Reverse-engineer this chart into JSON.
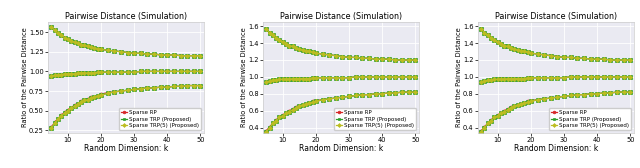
{
  "title": "Pairwise Distance (Simulation)",
  "xlabel": "Random Dimension: k",
  "ylabel": "Ratio of the Pairwise Distance",
  "k_values": [
    5,
    6,
    7,
    8,
    9,
    10,
    11,
    12,
    13,
    14,
    15,
    16,
    17,
    18,
    19,
    20,
    22,
    24,
    26,
    28,
    30,
    32,
    34,
    36,
    38,
    40,
    42,
    44,
    46,
    48,
    50
  ],
  "subplots": [
    {
      "ylim": [
        0.22,
        1.63
      ],
      "yticks": [
        0.25,
        0.5,
        0.75,
        1.0,
        1.25,
        1.5
      ],
      "sparse_rp_upper": [
        1.57,
        1.52,
        1.49,
        1.46,
        1.43,
        1.41,
        1.39,
        1.37,
        1.36,
        1.34,
        1.33,
        1.32,
        1.31,
        1.3,
        1.29,
        1.28,
        1.27,
        1.26,
        1.25,
        1.24,
        1.23,
        1.23,
        1.22,
        1.22,
        1.21,
        1.21,
        1.21,
        1.2,
        1.2,
        1.2,
        1.2
      ],
      "sparse_rp_mid": [
        0.94,
        0.95,
        0.96,
        0.96,
        0.97,
        0.97,
        0.97,
        0.97,
        0.98,
        0.98,
        0.98,
        0.98,
        0.98,
        0.98,
        0.99,
        0.99,
        0.99,
        0.99,
        0.99,
        0.99,
        0.99,
        1.0,
        1.0,
        1.0,
        1.0,
        1.0,
        1.0,
        1.0,
        1.0,
        1.0,
        1.0
      ],
      "sparse_rp_lower": [
        0.29,
        0.35,
        0.4,
        0.44,
        0.48,
        0.51,
        0.54,
        0.57,
        0.59,
        0.62,
        0.63,
        0.65,
        0.67,
        0.68,
        0.69,
        0.71,
        0.73,
        0.74,
        0.75,
        0.76,
        0.77,
        0.78,
        0.79,
        0.79,
        0.8,
        0.8,
        0.81,
        0.81,
        0.82,
        0.82,
        0.82
      ],
      "trp_upper": [
        1.57,
        1.52,
        1.49,
        1.46,
        1.43,
        1.41,
        1.39,
        1.37,
        1.36,
        1.34,
        1.33,
        1.32,
        1.31,
        1.3,
        1.29,
        1.28,
        1.27,
        1.26,
        1.25,
        1.24,
        1.23,
        1.23,
        1.22,
        1.22,
        1.21,
        1.21,
        1.21,
        1.2,
        1.2,
        1.2,
        1.2
      ],
      "trp_mid": [
        0.94,
        0.95,
        0.96,
        0.96,
        0.97,
        0.97,
        0.97,
        0.97,
        0.98,
        0.98,
        0.98,
        0.98,
        0.98,
        0.98,
        0.99,
        0.99,
        0.99,
        0.99,
        0.99,
        0.99,
        0.99,
        1.0,
        1.0,
        1.0,
        1.0,
        1.0,
        1.0,
        1.0,
        1.0,
        1.0,
        1.0
      ],
      "trp_lower": [
        0.28,
        0.34,
        0.39,
        0.43,
        0.47,
        0.5,
        0.53,
        0.56,
        0.58,
        0.61,
        0.63,
        0.64,
        0.66,
        0.68,
        0.69,
        0.7,
        0.72,
        0.74,
        0.75,
        0.76,
        0.77,
        0.78,
        0.79,
        0.79,
        0.8,
        0.8,
        0.81,
        0.81,
        0.82,
        0.82,
        0.82
      ],
      "trp5_upper": [
        1.57,
        1.52,
        1.49,
        1.46,
        1.43,
        1.41,
        1.39,
        1.37,
        1.36,
        1.34,
        1.33,
        1.32,
        1.31,
        1.3,
        1.29,
        1.28,
        1.27,
        1.26,
        1.25,
        1.24,
        1.23,
        1.23,
        1.22,
        1.22,
        1.21,
        1.21,
        1.21,
        1.2,
        1.2,
        1.2,
        1.2
      ],
      "trp5_mid": [
        0.94,
        0.95,
        0.96,
        0.96,
        0.97,
        0.97,
        0.97,
        0.97,
        0.98,
        0.98,
        0.98,
        0.98,
        0.98,
        0.98,
        0.99,
        0.99,
        0.99,
        0.99,
        0.99,
        0.99,
        0.99,
        1.0,
        1.0,
        1.0,
        1.0,
        1.0,
        1.0,
        1.0,
        1.0,
        1.0,
        1.0
      ],
      "trp5_lower": [
        0.28,
        0.34,
        0.39,
        0.43,
        0.47,
        0.5,
        0.53,
        0.56,
        0.58,
        0.61,
        0.63,
        0.64,
        0.66,
        0.68,
        0.69,
        0.7,
        0.72,
        0.74,
        0.75,
        0.76,
        0.77,
        0.78,
        0.79,
        0.79,
        0.8,
        0.8,
        0.81,
        0.81,
        0.82,
        0.82,
        0.82
      ]
    },
    {
      "ylim": [
        0.34,
        1.65
      ],
      "yticks": [
        0.4,
        0.6,
        0.8,
        1.0,
        1.2,
        1.4,
        1.6
      ],
      "sparse_rp_upper": [
        1.57,
        1.52,
        1.49,
        1.46,
        1.43,
        1.41,
        1.39,
        1.37,
        1.36,
        1.34,
        1.33,
        1.32,
        1.31,
        1.3,
        1.29,
        1.28,
        1.27,
        1.26,
        1.25,
        1.24,
        1.23,
        1.23,
        1.22,
        1.22,
        1.21,
        1.21,
        1.21,
        1.2,
        1.2,
        1.2,
        1.2
      ],
      "sparse_rp_mid": [
        0.94,
        0.95,
        0.96,
        0.96,
        0.97,
        0.97,
        0.97,
        0.97,
        0.98,
        0.98,
        0.98,
        0.98,
        0.98,
        0.98,
        0.99,
        0.99,
        0.99,
        0.99,
        0.99,
        0.99,
        0.99,
        1.0,
        1.0,
        1.0,
        1.0,
        1.0,
        1.0,
        1.0,
        1.0,
        1.0,
        1.0
      ],
      "sparse_rp_lower": [
        0.36,
        0.41,
        0.45,
        0.49,
        0.52,
        0.55,
        0.57,
        0.6,
        0.62,
        0.64,
        0.65,
        0.67,
        0.68,
        0.69,
        0.71,
        0.72,
        0.73,
        0.74,
        0.75,
        0.76,
        0.77,
        0.78,
        0.79,
        0.79,
        0.8,
        0.8,
        0.81,
        0.81,
        0.82,
        0.82,
        0.82
      ],
      "trp_upper": [
        1.57,
        1.52,
        1.49,
        1.46,
        1.43,
        1.41,
        1.39,
        1.37,
        1.36,
        1.34,
        1.33,
        1.32,
        1.31,
        1.3,
        1.29,
        1.28,
        1.27,
        1.26,
        1.25,
        1.24,
        1.23,
        1.23,
        1.22,
        1.22,
        1.21,
        1.21,
        1.21,
        1.2,
        1.2,
        1.2,
        1.2
      ],
      "trp_mid": [
        0.94,
        0.95,
        0.96,
        0.96,
        0.97,
        0.97,
        0.97,
        0.97,
        0.98,
        0.98,
        0.98,
        0.98,
        0.98,
        0.98,
        0.99,
        0.99,
        0.99,
        0.99,
        0.99,
        0.99,
        0.99,
        1.0,
        1.0,
        1.0,
        1.0,
        1.0,
        1.0,
        1.0,
        1.0,
        1.0,
        1.0
      ],
      "trp_lower": [
        0.35,
        0.4,
        0.45,
        0.48,
        0.52,
        0.54,
        0.57,
        0.59,
        0.61,
        0.63,
        0.65,
        0.67,
        0.68,
        0.69,
        0.7,
        0.71,
        0.73,
        0.74,
        0.75,
        0.76,
        0.77,
        0.78,
        0.79,
        0.79,
        0.8,
        0.8,
        0.81,
        0.81,
        0.82,
        0.82,
        0.82
      ],
      "trp5_upper": [
        1.57,
        1.52,
        1.49,
        1.46,
        1.43,
        1.41,
        1.39,
        1.37,
        1.36,
        1.34,
        1.33,
        1.32,
        1.31,
        1.3,
        1.29,
        1.28,
        1.27,
        1.26,
        1.25,
        1.24,
        1.23,
        1.23,
        1.22,
        1.22,
        1.21,
        1.21,
        1.21,
        1.2,
        1.2,
        1.2,
        1.2
      ],
      "trp5_mid": [
        0.94,
        0.95,
        0.96,
        0.96,
        0.97,
        0.97,
        0.97,
        0.97,
        0.98,
        0.98,
        0.98,
        0.98,
        0.98,
        0.98,
        0.99,
        0.99,
        0.99,
        0.99,
        0.99,
        0.99,
        0.99,
        1.0,
        1.0,
        1.0,
        1.0,
        1.0,
        1.0,
        1.0,
        1.0,
        1.0,
        1.0
      ],
      "trp5_lower": [
        0.35,
        0.4,
        0.45,
        0.48,
        0.52,
        0.54,
        0.57,
        0.59,
        0.61,
        0.63,
        0.65,
        0.67,
        0.68,
        0.69,
        0.7,
        0.71,
        0.73,
        0.74,
        0.75,
        0.76,
        0.77,
        0.78,
        0.79,
        0.79,
        0.8,
        0.8,
        0.81,
        0.81,
        0.82,
        0.82,
        0.82
      ]
    },
    {
      "ylim": [
        0.34,
        1.65
      ],
      "yticks": [
        0.4,
        0.6,
        0.8,
        1.0,
        1.2,
        1.4,
        1.6
      ],
      "sparse_rp_upper": [
        1.57,
        1.52,
        1.49,
        1.46,
        1.43,
        1.41,
        1.39,
        1.37,
        1.36,
        1.34,
        1.33,
        1.32,
        1.31,
        1.3,
        1.29,
        1.28,
        1.27,
        1.26,
        1.25,
        1.24,
        1.23,
        1.23,
        1.22,
        1.22,
        1.21,
        1.21,
        1.21,
        1.2,
        1.2,
        1.2,
        1.2
      ],
      "sparse_rp_mid": [
        0.94,
        0.95,
        0.96,
        0.96,
        0.97,
        0.97,
        0.97,
        0.97,
        0.98,
        0.98,
        0.98,
        0.98,
        0.98,
        0.98,
        0.99,
        0.99,
        0.99,
        0.99,
        0.99,
        0.99,
        0.99,
        1.0,
        1.0,
        1.0,
        1.0,
        1.0,
        1.0,
        1.0,
        1.0,
        1.0,
        1.0
      ],
      "sparse_rp_lower": [
        0.36,
        0.41,
        0.45,
        0.49,
        0.52,
        0.55,
        0.57,
        0.6,
        0.62,
        0.64,
        0.65,
        0.67,
        0.68,
        0.69,
        0.71,
        0.72,
        0.73,
        0.74,
        0.75,
        0.76,
        0.77,
        0.78,
        0.79,
        0.79,
        0.8,
        0.8,
        0.81,
        0.81,
        0.82,
        0.82,
        0.82
      ],
      "trp_upper": [
        1.57,
        1.52,
        1.49,
        1.46,
        1.43,
        1.41,
        1.39,
        1.37,
        1.36,
        1.34,
        1.33,
        1.32,
        1.31,
        1.3,
        1.29,
        1.28,
        1.27,
        1.26,
        1.25,
        1.24,
        1.23,
        1.23,
        1.22,
        1.22,
        1.21,
        1.21,
        1.21,
        1.2,
        1.2,
        1.2,
        1.2
      ],
      "trp_mid": [
        0.94,
        0.95,
        0.96,
        0.96,
        0.97,
        0.97,
        0.97,
        0.97,
        0.98,
        0.98,
        0.98,
        0.98,
        0.98,
        0.98,
        0.99,
        0.99,
        0.99,
        0.99,
        0.99,
        0.99,
        0.99,
        1.0,
        1.0,
        1.0,
        1.0,
        1.0,
        1.0,
        1.0,
        1.0,
        1.0,
        1.0
      ],
      "trp_lower": [
        0.35,
        0.4,
        0.45,
        0.48,
        0.52,
        0.54,
        0.57,
        0.59,
        0.61,
        0.63,
        0.65,
        0.67,
        0.68,
        0.69,
        0.7,
        0.71,
        0.73,
        0.74,
        0.75,
        0.76,
        0.77,
        0.78,
        0.79,
        0.79,
        0.8,
        0.8,
        0.81,
        0.81,
        0.82,
        0.82,
        0.82
      ],
      "trp5_upper": [
        1.57,
        1.52,
        1.49,
        1.46,
        1.43,
        1.41,
        1.39,
        1.37,
        1.36,
        1.34,
        1.33,
        1.32,
        1.31,
        1.3,
        1.29,
        1.28,
        1.27,
        1.26,
        1.25,
        1.24,
        1.23,
        1.23,
        1.22,
        1.22,
        1.21,
        1.21,
        1.21,
        1.2,
        1.2,
        1.2,
        1.2
      ],
      "trp5_mid": [
        0.94,
        0.95,
        0.96,
        0.96,
        0.97,
        0.97,
        0.97,
        0.97,
        0.98,
        0.98,
        0.98,
        0.98,
        0.98,
        0.98,
        0.99,
        0.99,
        0.99,
        0.99,
        0.99,
        0.99,
        0.99,
        1.0,
        1.0,
        1.0,
        1.0,
        1.0,
        1.0,
        1.0,
        1.0,
        1.0,
        1.0
      ],
      "trp5_lower": [
        0.35,
        0.4,
        0.45,
        0.48,
        0.52,
        0.54,
        0.57,
        0.59,
        0.61,
        0.63,
        0.65,
        0.67,
        0.68,
        0.69,
        0.7,
        0.71,
        0.73,
        0.74,
        0.75,
        0.76,
        0.77,
        0.78,
        0.79,
        0.79,
        0.8,
        0.8,
        0.81,
        0.81,
        0.82,
        0.82,
        0.82
      ]
    }
  ],
  "color_rp": "#d62728",
  "color_trp": "#2ca02c",
  "color_trp5": "#bcbd22",
  "label_rp": "Sparse RP",
  "label_trp": "Sparse TRP (Proposed)",
  "label_trp5": "Sparse TRP(5) (Proposed)",
  "marker_rp": "o",
  "marker_trp": "s",
  "marker_trp5": "D",
  "xticks": [
    10,
    20,
    30,
    40,
    50
  ],
  "xlim": [
    4,
    51
  ],
  "bg_color": "#eaeaf2"
}
